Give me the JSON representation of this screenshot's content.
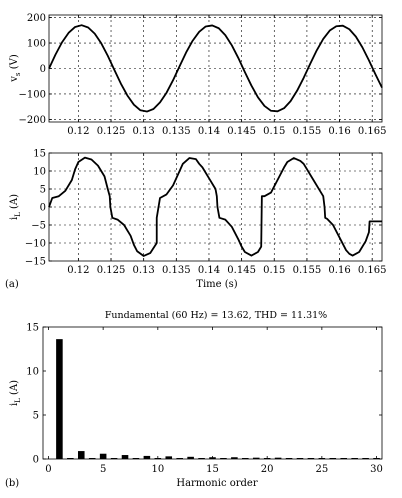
{
  "figure_labels": {
    "panel_a": "(a)",
    "panel_b": "(b)"
  },
  "chart_data": [
    {
      "type": "line",
      "id": "vs",
      "ylabel_main": "v",
      "ylabel_sub": "s",
      "ylabel_unit": " (V)",
      "xlabel": "",
      "xlim": [
        0.1155,
        0.1665
      ],
      "ylim": [
        -210,
        210
      ],
      "x_ticks": [
        0.12,
        0.125,
        0.13,
        0.135,
        0.14,
        0.145,
        0.15,
        0.155,
        0.16,
        0.165
      ],
      "x_tick_labels": [
        "0.12",
        "0.125",
        "0.13",
        "0.135",
        "0.14",
        "0.145",
        "0.15",
        "0.155",
        "0.16",
        "0.165"
      ],
      "y_ticks": [
        -200,
        -100,
        0,
        100,
        200
      ],
      "y_tick_labels": [
        "−200",
        "−100",
        "0",
        "100",
        "200"
      ],
      "grid": "dashed",
      "series": [
        {
          "x": [
            0.1155,
            0.1165,
            0.1175,
            0.1185,
            0.1195,
            0.1205,
            0.1215,
            0.1225,
            0.1235,
            0.1245,
            0.1255,
            0.1265,
            0.1275,
            0.1285,
            0.1295,
            0.1305,
            0.1315,
            0.1325,
            0.1335,
            0.1345,
            0.1355,
            0.1365,
            0.1375,
            0.1385,
            0.1395,
            0.1405,
            0.1415,
            0.1425,
            0.1435,
            0.1445,
            0.1455,
            0.1465,
            0.1475,
            0.1485,
            0.1495,
            0.1505,
            0.1515,
            0.1525,
            0.1535,
            0.1545,
            0.1555,
            0.1565,
            0.1575,
            0.1585,
            0.1595,
            0.1605,
            0.1615,
            0.1625,
            0.1635,
            0.1645,
            0.1655,
            0.1665
          ],
          "y": [
            0,
            55,
            103,
            140,
            163,
            170,
            161,
            137,
            99,
            50,
            -5,
            -59,
            -106,
            -142,
            -164,
            -169,
            -159,
            -133,
            -95,
            -46,
            9,
            63,
            109,
            144,
            165,
            169,
            158,
            131,
            91,
            41,
            -14,
            -67,
            -113,
            -147,
            -166,
            -168,
            -156,
            -128,
            -87,
            -37,
            18,
            71,
            116,
            149,
            166,
            168,
            154,
            125,
            83,
            32,
            -23,
            -75
          ]
        }
      ]
    },
    {
      "type": "line",
      "id": "iL",
      "ylabel_main": "i",
      "ylabel_sub": "L",
      "ylabel_unit": " (A)",
      "xlabel": "Time (s)",
      "xlim": [
        0.1155,
        0.1665
      ],
      "ylim": [
        -15,
        15
      ],
      "x_ticks": [
        0.12,
        0.125,
        0.13,
        0.135,
        0.14,
        0.145,
        0.15,
        0.155,
        0.16,
        0.165
      ],
      "x_tick_labels": [
        "0.12",
        "0.125",
        "0.13",
        "0.135",
        "0.14",
        "0.145",
        "0.15",
        "0.155",
        "0.16",
        "0.165"
      ],
      "y_ticks": [
        -15,
        -10,
        -5,
        0,
        5,
        10,
        15
      ],
      "y_tick_labels": [
        "−15",
        "−10",
        "−5",
        "0",
        "5",
        "10",
        "15"
      ],
      "grid": "dashed",
      "series": [
        {
          "x": [
            0.1155,
            0.116,
            0.117,
            0.118,
            0.119,
            0.1195,
            0.12,
            0.121,
            0.122,
            0.123,
            0.124,
            0.1245,
            0.1248,
            0.1249,
            0.1252,
            0.126,
            0.127,
            0.128,
            0.1285,
            0.129,
            0.13,
            0.131,
            0.132,
            0.132,
            0.1325,
            0.1335,
            0.1345,
            0.1355,
            0.136,
            0.137,
            0.138,
            0.1385,
            0.139,
            0.14,
            0.141,
            0.1412,
            0.1413,
            0.1416,
            0.1425,
            0.1435,
            0.1445,
            0.145,
            0.1455,
            0.1465,
            0.1475,
            0.148,
            0.1481,
            0.1485,
            0.1495,
            0.1505,
            0.1515,
            0.152,
            0.153,
            0.154,
            0.1545,
            0.155,
            0.156,
            0.157,
            0.1575,
            0.1577,
            0.1578,
            0.1581,
            0.159,
            0.16,
            0.161,
            0.1615,
            0.162,
            0.163,
            0.164,
            0.1645,
            0.1646,
            0.165,
            0.1665
          ],
          "y": [
            0,
            2.5,
            3,
            4.5,
            7.5,
            10.5,
            12.5,
            13.7,
            13.2,
            11.5,
            8.5,
            5,
            3,
            0,
            -3,
            -3.5,
            -5,
            -8,
            -10.5,
            -12.3,
            -13.6,
            -12.8,
            -10,
            -3,
            2.5,
            3.5,
            6,
            10,
            12,
            13.6,
            13.3,
            12,
            11,
            8,
            5,
            3,
            0,
            -3,
            -3.5,
            -5.5,
            -9,
            -11,
            -12.5,
            -13.5,
            -12.5,
            -11,
            3,
            3,
            4,
            7.5,
            11,
            12.5,
            13.6,
            12.8,
            12,
            10.5,
            7.5,
            4.5,
            3,
            0,
            -3,
            -3.3,
            -5,
            -8.5,
            -12,
            -13,
            -13.5,
            -12.5,
            -9.5,
            -7,
            -4,
            -4,
            -4
          ]
        }
      ]
    },
    {
      "type": "bar",
      "id": "spectrum",
      "title": "Fundamental (60 Hz) = 13.62, THD = 11.31%",
      "xlabel": "Harmonic order",
      "ylabel_main": "i",
      "ylabel_sub": "L",
      "ylabel_unit": " (A)",
      "xlim": [
        -0.5,
        30.5
      ],
      "ylim": [
        0,
        15
      ],
      "x_ticks": [
        0,
        5,
        10,
        15,
        20,
        25,
        30
      ],
      "x_tick_labels": [
        "0",
        "5",
        "10",
        "15",
        "20",
        "25",
        "30"
      ],
      "y_ticks": [
        0,
        5,
        10,
        15
      ],
      "y_tick_labels": [
        "0",
        "5",
        "10",
        "15"
      ],
      "grid": "none",
      "categories": [
        1,
        2,
        3,
        4,
        5,
        6,
        7,
        8,
        9,
        10,
        11,
        12,
        13,
        14,
        15,
        16,
        17,
        18,
        19,
        20,
        21,
        22,
        23,
        24,
        25,
        26,
        27,
        28,
        29,
        30
      ],
      "values": [
        13.62,
        0.05,
        0.9,
        0.05,
        0.6,
        0.05,
        0.45,
        0.05,
        0.35,
        0.05,
        0.3,
        0.05,
        0.25,
        0.05,
        0.2,
        0.05,
        0.2,
        0.05,
        0.15,
        0.05,
        0.15,
        0.05,
        0.1,
        0.05,
        0.1,
        0.05,
        0.1,
        0.05,
        0.1,
        0.05
      ]
    }
  ]
}
